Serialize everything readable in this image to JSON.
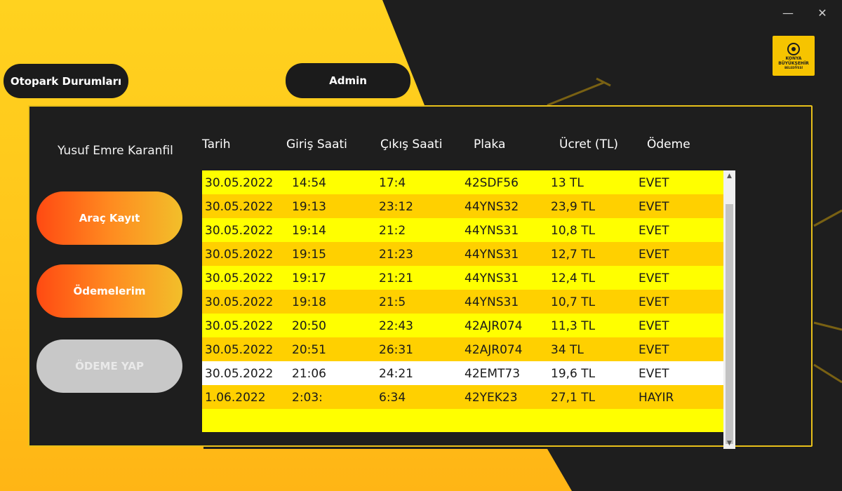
{
  "window": {
    "minimize": "—",
    "close": "✕"
  },
  "logo": {
    "line1": "KONYA",
    "line2": "BÜYÜKŞEHİR",
    "line3": "BELEDİYESİ"
  },
  "nav": {
    "parking_status": "Otopark Durumları",
    "admin": "Admin"
  },
  "user": {
    "name": "Yusuf Emre Karanfil"
  },
  "sidebar": {
    "vehicle_register": "Araç Kayıt",
    "my_payments": "Ödemelerim",
    "make_payment": "ÖDEME YAP"
  },
  "table": {
    "headers": [
      "Tarih",
      "Giriş Saati",
      "Çıkış Saati",
      "Plaka",
      "Ücret (TL)",
      "Ödeme"
    ],
    "rows": [
      [
        "30.05.2022",
        "14:54",
        "17:4",
        "42SDF56",
        "13 TL",
        "EVET"
      ],
      [
        "30.05.2022",
        "19:13",
        "23:12",
        "44YNS32",
        "23,9 TL",
        "EVET"
      ],
      [
        "30.05.2022",
        "19:14",
        "21:2",
        "44YNS31",
        "10,8 TL",
        "EVET"
      ],
      [
        "30.05.2022",
        "19:15",
        "21:23",
        "44YNS31",
        "12,7 TL",
        "EVET"
      ],
      [
        "30.05.2022",
        "19:17",
        "21:21",
        "44YNS31",
        "12,4 TL",
        "EVET"
      ],
      [
        "30.05.2022",
        "19:18",
        "21:5",
        "44YNS31",
        "10,7 TL",
        "EVET"
      ],
      [
        "30.05.2022",
        "20:50",
        "22:43",
        "42AJR074",
        "11,3 TL",
        "EVET"
      ],
      [
        "30.05.2022",
        "20:51",
        "26:31",
        "42AJR074",
        "34 TL",
        "EVET"
      ],
      [
        "30.05.2022",
        "21:06",
        "24:21",
        "42EMT73",
        "19,6 TL",
        "EVET"
      ],
      [
        "1.06.2022",
        "2:03:",
        "6:34",
        "42YEK23",
        "27,1 TL",
        "HAYIR"
      ]
    ],
    "row_colors": {
      "odd": "#ffff00",
      "even": "#ffd000",
      "selected": "#ffffff",
      "selected_index": 8
    }
  },
  "colors": {
    "accent_yellow": "#ffcc1f",
    "dark_bg": "#1e1e1e",
    "button_orange": "#ff4a12"
  }
}
